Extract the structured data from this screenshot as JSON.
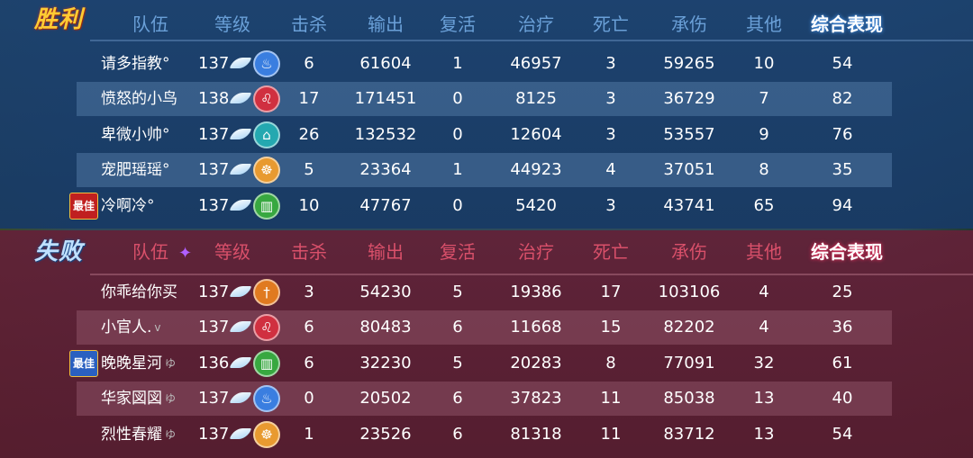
{
  "headers": [
    "队伍",
    "等级",
    "击杀",
    "输出",
    "复活",
    "治疗",
    "死亡",
    "承伤",
    "其他",
    "综合表现"
  ],
  "best_label": "最佳",
  "emblem_colors": {
    "fire": "#3a7ee0",
    "lion": "#d03040",
    "temple": "#24a8b0",
    "buddha": "#e89a30",
    "bamboo": "#38a840",
    "sword": "#e07a20"
  },
  "winners": {
    "title": "胜利",
    "rows": [
      {
        "name": "请多指教°",
        "tag": "",
        "level": "137",
        "emblem": "fire",
        "kills": "6",
        "output": "61604",
        "revive": "1",
        "heal": "46957",
        "deaths": "3",
        "taken": "59265",
        "other": "10",
        "score": "54",
        "best": false
      },
      {
        "name": "愤怒的小鸟",
        "tag": "",
        "level": "138",
        "emblem": "lion",
        "kills": "17",
        "output": "171451",
        "revive": "0",
        "heal": "8125",
        "deaths": "3",
        "taken": "36729",
        "other": "7",
        "score": "82",
        "best": false
      },
      {
        "name": "卑微小帅°",
        "tag": "",
        "level": "137",
        "emblem": "temple",
        "kills": "26",
        "output": "132532",
        "revive": "0",
        "heal": "12604",
        "deaths": "3",
        "taken": "53557",
        "other": "9",
        "score": "76",
        "best": false
      },
      {
        "name": "宠肥瑶瑶°",
        "tag": "",
        "level": "137",
        "emblem": "buddha",
        "kills": "5",
        "output": "23364",
        "revive": "1",
        "heal": "44923",
        "deaths": "4",
        "taken": "37051",
        "other": "8",
        "score": "35",
        "best": false
      },
      {
        "name": "冷啊冷°",
        "tag": "",
        "level": "137",
        "emblem": "bamboo",
        "kills": "10",
        "output": "47767",
        "revive": "0",
        "heal": "5420",
        "deaths": "3",
        "taken": "43741",
        "other": "65",
        "score": "94",
        "best": true
      }
    ]
  },
  "losers": {
    "title": "失败",
    "rows": [
      {
        "name": "你乖给你买",
        "tag": "",
        "level": "137",
        "emblem": "sword",
        "kills": "3",
        "output": "54230",
        "revive": "5",
        "heal": "19386",
        "deaths": "17",
        "taken": "103106",
        "other": "4",
        "score": "25",
        "best": false
      },
      {
        "name": "小官人.",
        "tag": "v",
        "level": "137",
        "emblem": "lion",
        "kills": "6",
        "output": "80483",
        "revive": "6",
        "heal": "11668",
        "deaths": "15",
        "taken": "82202",
        "other": "4",
        "score": "36",
        "best": false
      },
      {
        "name": "晚晚星河",
        "tag": "ゆ",
        "level": "136",
        "emblem": "bamboo",
        "kills": "6",
        "output": "32230",
        "revive": "5",
        "heal": "20283",
        "deaths": "8",
        "taken": "77091",
        "other": "32",
        "score": "61",
        "best": true
      },
      {
        "name": "华家図図",
        "tag": "ゆ",
        "level": "137",
        "emblem": "fire",
        "kills": "0",
        "output": "20502",
        "revive": "6",
        "heal": "37823",
        "deaths": "11",
        "taken": "85038",
        "other": "13",
        "score": "40",
        "best": false
      },
      {
        "name": "烈性春耀",
        "tag": "ゆ",
        "level": "137",
        "emblem": "buddha",
        "kills": "1",
        "output": "23526",
        "revive": "6",
        "heal": "81318",
        "deaths": "11",
        "taken": "83712",
        "other": "13",
        "score": "54",
        "best": false
      }
    ]
  }
}
